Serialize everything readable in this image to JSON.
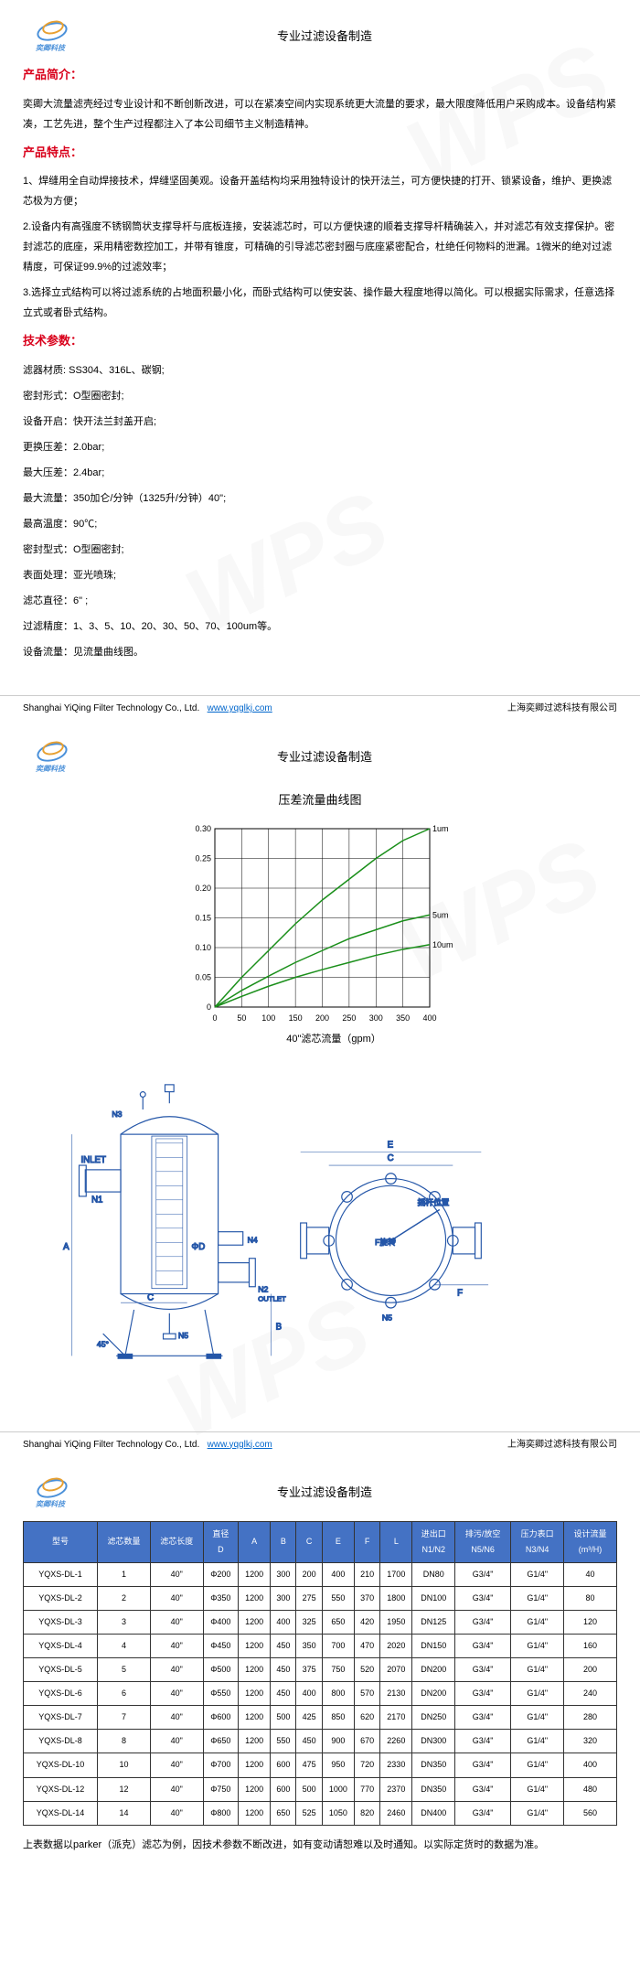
{
  "logo_text": "奕卿科技",
  "header_title": "专业过滤设备制造",
  "sections": {
    "intro_title": "产品简介：",
    "intro_text": "奕卿大流量滤壳经过专业设计和不断创新改进，可以在紧凑空间内实现系统更大流量的要求，最大限度降低用户采购成本。设备结构紧凑，工艺先进，整个生产过程都注入了本公司细节主义制造精神。",
    "features_title": "产品特点：",
    "feature1": "1、焊缝用全自动焊接技术，焊缝坚固美观。设备开盖结构均采用独特设计的快开法兰，可方便快捷的打开、锁紧设备，维护、更换滤芯极为方便；",
    "feature2": "2.设备内有高强度不锈钢筒状支撑导杆与底板连接，安装滤芯时，可以方便快速的顺着支撑导杆精确装入，并对滤芯有效支撑保护。密封滤芯的底座，采用精密数控加工，并带有锥度，可精确的引导滤芯密封圈与底座紧密配合，杜绝任何物料的泄漏。1微米的绝对过滤精度，可保证99.9%的过滤效率；",
    "feature3": "3.选择立式结构可以将过滤系统的占地面积最小化，而卧式结构可以使安装、操作最大程度地得以简化。可以根据实际需求，任意选择立式或者卧式结构。",
    "specs_title": "技术参数：",
    "spec_material": "滤器材质: SS304、316L、碳钢;",
    "spec_seal": "密封形式：O型圈密封;",
    "spec_open": "设备开启：快开法兰封盖开启;",
    "spec_change_pressure": "更换压差：2.0bar;",
    "spec_max_pressure": "最大压差：2.4bar;",
    "spec_max_flow": "最大流量：350加仑/分钟（1325升/分钟）40\";",
    "spec_max_temp": "最高温度：90℃;",
    "spec_seal_type": "密封型式：O型圈密封;",
    "spec_surface": "表面处理：亚光喷珠;",
    "spec_diameter": "滤芯直径：6\" ;",
    "spec_precision": "过滤精度：1、3、5、10、20、30、50、70、100um等。",
    "spec_flow": "设备流量：见流量曲线图。"
  },
  "footer": {
    "company_en": "Shanghai YiQing Filter Technology Co., Ltd.",
    "url": "www.yqglkj.com",
    "company_cn": "上海奕卿过滤科技有限公司"
  },
  "chart": {
    "title": "压差流量曲线图",
    "x_label": "40\"滤芯流量（gpm）",
    "x_ticks": [
      "0",
      "50",
      "100",
      "150",
      "200",
      "250",
      "300",
      "350",
      "400"
    ],
    "y_ticks": [
      "0",
      "0.05",
      "0.10",
      "0.15",
      "0.20",
      "0.25",
      "0.30"
    ],
    "series": [
      {
        "label": "1um",
        "color": "#1a8f1a",
        "points": [
          [
            0,
            0
          ],
          [
            50,
            0.05
          ],
          [
            100,
            0.095
          ],
          [
            150,
            0.14
          ],
          [
            200,
            0.18
          ],
          [
            250,
            0.215
          ],
          [
            300,
            0.25
          ],
          [
            350,
            0.28
          ],
          [
            400,
            0.3
          ]
        ]
      },
      {
        "label": "5um",
        "color": "#1a8f1a",
        "points": [
          [
            0,
            0
          ],
          [
            50,
            0.028
          ],
          [
            100,
            0.052
          ],
          [
            150,
            0.075
          ],
          [
            200,
            0.095
          ],
          [
            250,
            0.115
          ],
          [
            300,
            0.13
          ],
          [
            350,
            0.145
          ],
          [
            400,
            0.155
          ]
        ]
      },
      {
        "label": "10um",
        "color": "#1a8f1a",
        "points": [
          [
            0,
            0
          ],
          [
            50,
            0.018
          ],
          [
            100,
            0.035
          ],
          [
            150,
            0.05
          ],
          [
            200,
            0.063
          ],
          [
            250,
            0.075
          ],
          [
            300,
            0.087
          ],
          [
            350,
            0.097
          ],
          [
            400,
            0.105
          ]
        ]
      }
    ],
    "grid_color": "#000",
    "xlim": [
      0,
      400
    ],
    "ylim": [
      0,
      0.3
    ]
  },
  "diagram_labels": {
    "inlet": "INLET",
    "n1": "N1",
    "n2": "N2",
    "n3": "N3",
    "n4": "N4",
    "n5": "N5",
    "outlet": "OUTLET",
    "a": "A",
    "b": "B",
    "c": "C",
    "d": "ΦD",
    "e": "E",
    "f_txt": "F旋转",
    "arm": "摇杆位置",
    "angle": "45°"
  },
  "table": {
    "headers": [
      "型号",
      "滤芯数量",
      "滤芯长度",
      "直径\nD",
      "A",
      "B",
      "C",
      "E",
      "F",
      "L",
      "进出口\nN1/N2",
      "排污/放空\nN5/N6",
      "压力表口\nN3/N4",
      "设计流量\n(m³/H)"
    ],
    "rows": [
      [
        "YQXS-DL-1",
        "1",
        "40\"",
        "Φ200",
        "1200",
        "300",
        "200",
        "400",
        "210",
        "1700",
        "DN80",
        "G3/4\"",
        "G1/4\"",
        "40"
      ],
      [
        "YQXS-DL-2",
        "2",
        "40\"",
        "Φ350",
        "1200",
        "300",
        "275",
        "550",
        "370",
        "1800",
        "DN100",
        "G3/4\"",
        "G1/4\"",
        "80"
      ],
      [
        "YQXS-DL-3",
        "3",
        "40\"",
        "Φ400",
        "1200",
        "400",
        "325",
        "650",
        "420",
        "1950",
        "DN125",
        "G3/4\"",
        "G1/4\"",
        "120"
      ],
      [
        "YQXS-DL-4",
        "4",
        "40\"",
        "Φ450",
        "1200",
        "450",
        "350",
        "700",
        "470",
        "2020",
        "DN150",
        "G3/4\"",
        "G1/4\"",
        "160"
      ],
      [
        "YQXS-DL-5",
        "5",
        "40\"",
        "Φ500",
        "1200",
        "450",
        "375",
        "750",
        "520",
        "2070",
        "DN200",
        "G3/4\"",
        "G1/4\"",
        "200"
      ],
      [
        "YQXS-DL-6",
        "6",
        "40\"",
        "Φ550",
        "1200",
        "450",
        "400",
        "800",
        "570",
        "2130",
        "DN200",
        "G3/4\"",
        "G1/4\"",
        "240"
      ],
      [
        "YQXS-DL-7",
        "7",
        "40\"",
        "Φ600",
        "1200",
        "500",
        "425",
        "850",
        "620",
        "2170",
        "DN250",
        "G3/4\"",
        "G1/4\"",
        "280"
      ],
      [
        "YQXS-DL-8",
        "8",
        "40\"",
        "Φ650",
        "1200",
        "550",
        "450",
        "900",
        "670",
        "2260",
        "DN300",
        "G3/4\"",
        "G1/4\"",
        "320"
      ],
      [
        "YQXS-DL-10",
        "10",
        "40\"",
        "Φ700",
        "1200",
        "600",
        "475",
        "950",
        "720",
        "2330",
        "DN350",
        "G3/4\"",
        "G1/4\"",
        "400"
      ],
      [
        "YQXS-DL-12",
        "12",
        "40\"",
        "Φ750",
        "1200",
        "600",
        "500",
        "1000",
        "770",
        "2370",
        "DN350",
        "G3/4\"",
        "G1/4\"",
        "480"
      ],
      [
        "YQXS-DL-14",
        "14",
        "40\"",
        "Φ800",
        "1200",
        "650",
        "525",
        "1050",
        "820",
        "2460",
        "DN400",
        "G3/4\"",
        "G1/4\"",
        "560"
      ]
    ],
    "footer_note": "上表数据以parker（派克）滤芯为例，因技术参数不断改进，如有变动请恕难以及时通知。以实际定货时的数据为准。"
  }
}
